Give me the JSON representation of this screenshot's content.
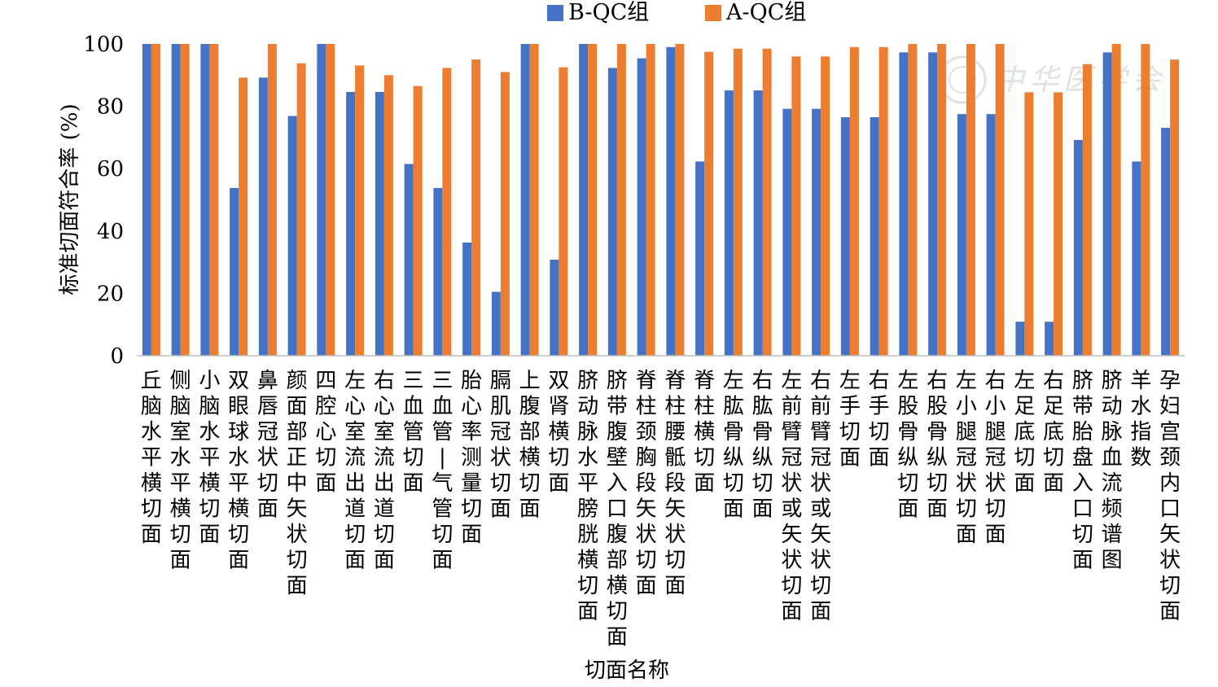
{
  "chart_data": {
    "type": "bar",
    "xlabel": "切面名称",
    "ylabel": "标准切面符合率 (%)",
    "ylim": [
      0,
      100
    ],
    "yticks": [
      0,
      20,
      40,
      60,
      80,
      100
    ],
    "grid": false,
    "legend_position": "top",
    "categories": [
      "丘脑水平横切面",
      "侧脑室水平横切面",
      "小脑水平横切面",
      "双眼球水平横切面",
      "鼻唇冠状切面",
      "颜面部正中矢状切面",
      "四腔心切面",
      "左心室流出道切面",
      "右心室流出道切面",
      "三血管切面",
      "三血管-气管切面",
      "胎心率测量切面",
      "膈肌冠状切面",
      "上腹部横切面",
      "双肾横切面",
      "脐动脉水平膀胱横切面",
      "脐带腹壁入口腹部横切面",
      "脊柱颈胸段矢状切面",
      "脊柱腰骶段矢状切面",
      "脊柱横切面",
      "左肱骨纵切面",
      "右肱骨纵切面",
      "左前臂冠状或矢状切面",
      "右前臂冠状或矢状切面",
      "左手切面",
      "右手切面",
      "左股骨纵切面",
      "右股骨纵切面",
      "左小腿冠状切面",
      "右小腿冠状切面",
      "左足底切面",
      "右足底切面",
      "脐带胎盘入口切面",
      "脐动脉血流频谱图",
      "羊水指数",
      "孕妇宫颈内口矢状切面"
    ],
    "series": [
      {
        "name": "B-QC组",
        "color": "#4472C4",
        "values": [
          100,
          100,
          100,
          53.8,
          89.2,
          76.9,
          100,
          84.6,
          84.6,
          61.5,
          53.8,
          36.3,
          20.5,
          100,
          30.8,
          100,
          92.3,
          95.4,
          99.0,
          62.3,
          85.1,
          85.1,
          79.2,
          79.2,
          76.5,
          76.5,
          97.3,
          97.3,
          77.5,
          77.5,
          10.9,
          10.9,
          69.2,
          97.3,
          62.3,
          73.1
        ]
      },
      {
        "name": "A-QC组",
        "color": "#ED7D31",
        "values": [
          100,
          100,
          100,
          89.2,
          100,
          93.8,
          100,
          93.1,
          90.0,
          86.5,
          92.3,
          95.0,
          91.0,
          100,
          92.5,
          100,
          100,
          100,
          100,
          97.5,
          98.5,
          98.5,
          96.0,
          96.0,
          99.0,
          99.0,
          100,
          100,
          100,
          100,
          84.5,
          84.5,
          93.5,
          100,
          100,
          95.0
        ]
      }
    ]
  },
  "watermark": {
    "text": "中华医学会",
    "color": "#c9c9c9"
  }
}
